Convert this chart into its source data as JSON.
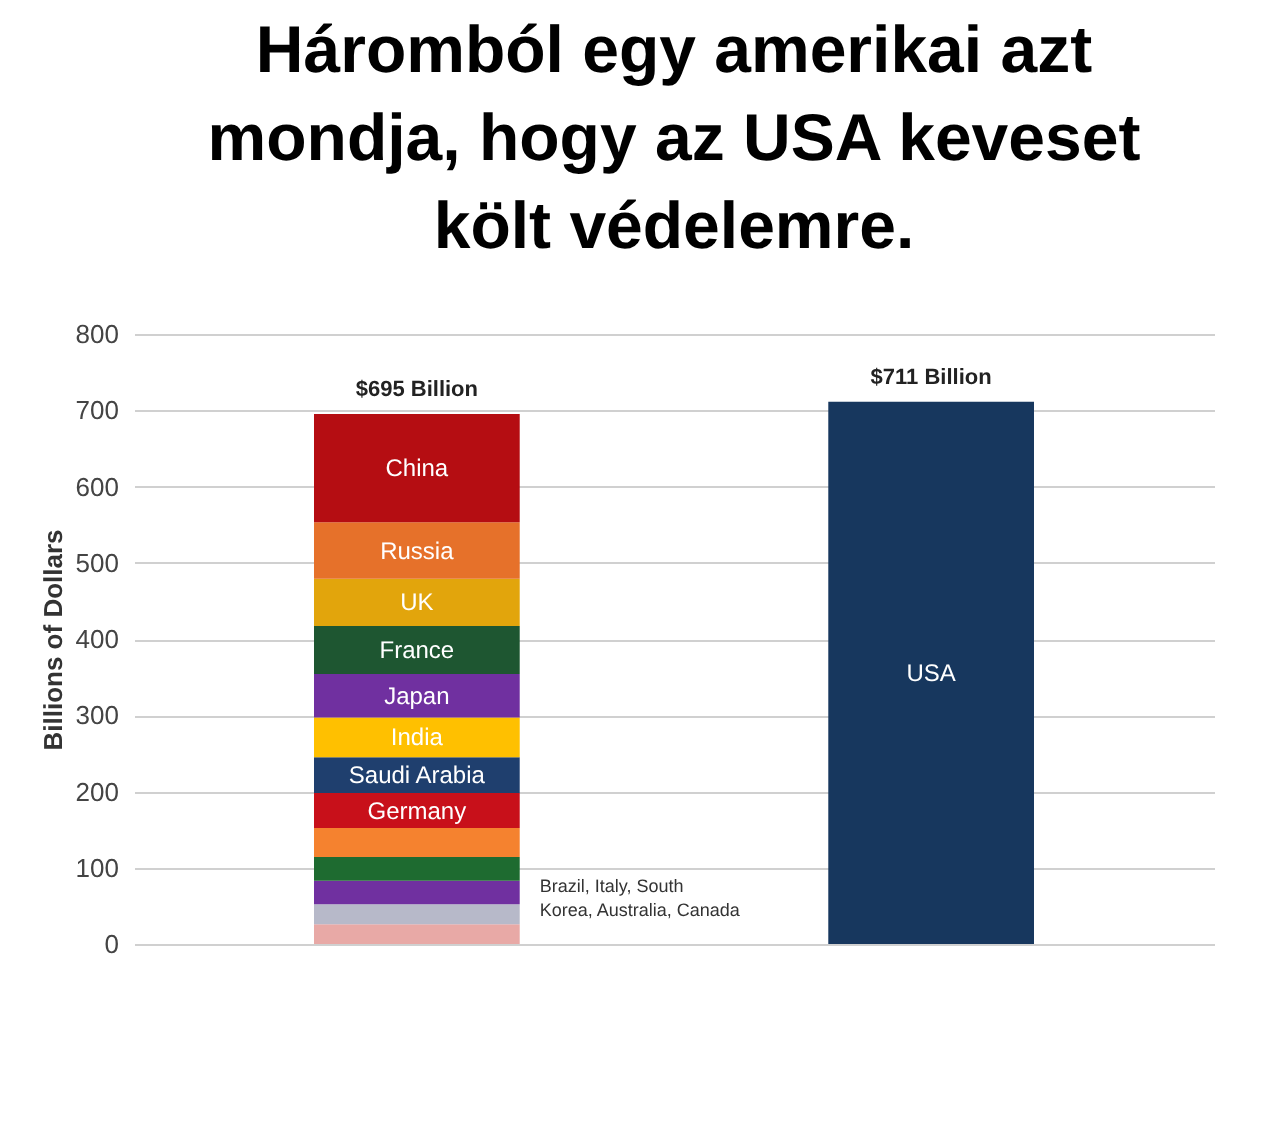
{
  "chart_data": {
    "type": "bar",
    "title": "Háromból egy amerikai azt mondja, hogy az USA keveset költ védelemre.",
    "ylabel": "Billions of Dollars",
    "categories": [
      null,
      null
    ],
    "stacked": true,
    "series": [
      {
        "color": "#e8a9a6",
        "values": [
          26,
          null
        ]
      },
      {
        "color": "#b7b9c9",
        "values": [
          26,
          null
        ]
      },
      {
        "color": "#7030a0",
        "values": [
          31,
          null
        ]
      },
      {
        "color": "#1e6b30",
        "values": [
          31,
          null
        ]
      },
      {
        "color": "#f5822f",
        "values": [
          38,
          null
        ]
      },
      {
        "name": "Germany",
        "color": "#c8101a",
        "values": [
          46,
          null
        ]
      },
      {
        "name": "Saudi Arabia",
        "color": "#1f3f6e",
        "values": [
          47,
          null
        ]
      },
      {
        "name": "India",
        "color": "#ffc000",
        "values": [
          52,
          null
        ]
      },
      {
        "name": "Japan",
        "color": "#7030a0",
        "values": [
          57,
          null
        ]
      },
      {
        "name": "France",
        "color": "#1e5631",
        "values": [
          63,
          null
        ]
      },
      {
        "name": "UK",
        "color": "#e2a50c",
        "values": [
          62,
          null
        ]
      },
      {
        "name": "Russia",
        "color": "#e6712a",
        "values": [
          74,
          null
        ]
      },
      {
        "name": "China",
        "color": "#b50d12",
        "values": [
          142,
          null
        ]
      },
      {
        "name": "USA",
        "color": "#17375e",
        "values": [
          null,
          711
        ]
      }
    ],
    "totals": [
      "$695 Billion",
      "$711 Billion"
    ],
    "annotations": [
      "Brazil, Italy, South Korea, Australia, Canada"
    ],
    "ylim": [
      0,
      800
    ],
    "yticks": [
      0,
      100,
      200,
      300,
      400,
      500,
      600,
      700,
      800
    ],
    "grid": "y",
    "legend": false,
    "tick_labels": "y"
  }
}
